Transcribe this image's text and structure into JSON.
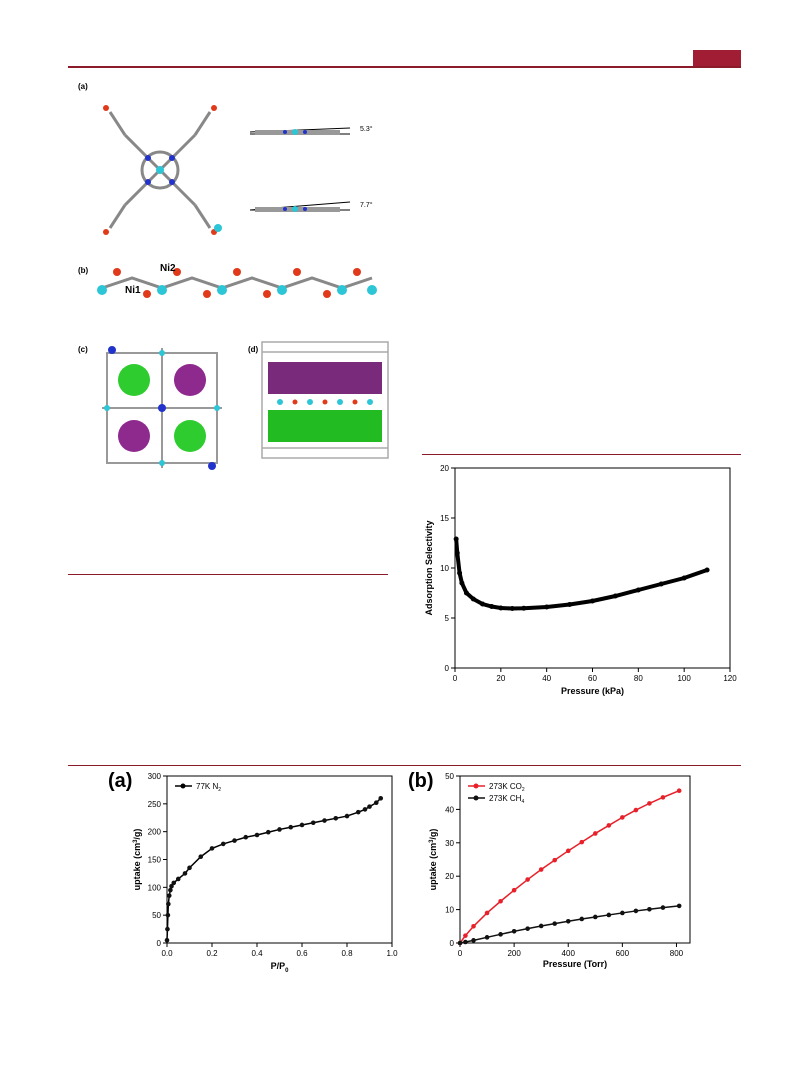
{
  "header": {
    "accent_color": "#a11d33"
  },
  "figure1": {
    "labels": {
      "a": "(a)",
      "b": "(b)",
      "c": "(c)",
      "d": "(d)"
    },
    "angle_top": "5.3°",
    "angle_bottom": "7.7°",
    "atom_labels": {
      "ni1": "Ni1",
      "ni2": "Ni2"
    }
  },
  "selectivity_chart": {
    "chart_data": {
      "type": "scatter",
      "xlabel": "Pressure (kPa)",
      "ylabel": "Adsorption Selectivity",
      "xlim": [
        0,
        120
      ],
      "ylim": [
        0,
        20
      ],
      "xticks": [
        "0",
        "20",
        "40",
        "60",
        "80",
        "100",
        "120"
      ],
      "yticks": [
        "0",
        "5",
        "10",
        "15",
        "20"
      ],
      "x": [
        0.5,
        1,
        2,
        3,
        5,
        8,
        12,
        16,
        20,
        25,
        30,
        40,
        50,
        60,
        70,
        80,
        90,
        100,
        110
      ],
      "y": [
        12.9,
        11.5,
        9.5,
        8.5,
        7.5,
        6.9,
        6.4,
        6.15,
        6.0,
        5.95,
        5.98,
        6.1,
        6.35,
        6.7,
        7.2,
        7.8,
        8.4,
        9.0,
        9.8
      ]
    }
  },
  "n2_chart": {
    "chart_data": {
      "type": "scatter",
      "panel_label": "(a)",
      "xlabel": "P/P",
      "xlabel_sub": "0",
      "ylabel": "uptake (cm",
      "ylabel_sup": "3",
      "ylabel_end": "/g)",
      "xlim": [
        0,
        1.0
      ],
      "ylim": [
        0,
        300
      ],
      "xticks": [
        "0.0",
        "0.2",
        "0.4",
        "0.6",
        "0.8",
        "1.0"
      ],
      "yticks": [
        "0",
        "50",
        "100",
        "150",
        "200",
        "250",
        "300"
      ],
      "series": [
        {
          "name": "77K N",
          "name_sub": "2",
          "x": [
            0.0,
            0.002,
            0.004,
            0.006,
            0.01,
            0.015,
            0.02,
            0.03,
            0.05,
            0.08,
            0.1,
            0.15,
            0.2,
            0.25,
            0.3,
            0.35,
            0.4,
            0.45,
            0.5,
            0.55,
            0.6,
            0.65,
            0.7,
            0.75,
            0.8,
            0.85,
            0.88,
            0.9,
            0.93,
            0.95
          ],
          "y": [
            5,
            25,
            50,
            70,
            85,
            95,
            102,
            108,
            115,
            125,
            135,
            155,
            170,
            178,
            184,
            190,
            194,
            199,
            204,
            208,
            212,
            216,
            220,
            224,
            228,
            235,
            240,
            245,
            252,
            260
          ]
        }
      ]
    }
  },
  "gas_chart": {
    "chart_data": {
      "type": "scatter",
      "panel_label": "(b)",
      "xlabel": "Pressure (Torr)",
      "ylabel": "uptake (cm",
      "ylabel_sup": "3",
      "ylabel_end": "/g)",
      "xlim": [
        0,
        850
      ],
      "ylim": [
        0,
        50
      ],
      "xticks": [
        "0",
        "200",
        "400",
        "600",
        "800"
      ],
      "yticks": [
        "0",
        "10",
        "20",
        "30",
        "40",
        "50"
      ],
      "series": [
        {
          "name": "273K CO",
          "name_sub": "2",
          "color": "#e8202a",
          "x": [
            0,
            20,
            50,
            100,
            150,
            200,
            250,
            300,
            350,
            400,
            450,
            500,
            550,
            600,
            650,
            700,
            750,
            810
          ],
          "y": [
            0,
            2.2,
            5.0,
            9.0,
            12.5,
            15.8,
            19.0,
            22.0,
            24.8,
            27.6,
            30.2,
            32.8,
            35.2,
            37.6,
            39.8,
            41.8,
            43.6,
            45.6
          ]
        },
        {
          "name": "273K CH",
          "name_sub": "4",
          "color": "#111111",
          "x": [
            0,
            20,
            50,
            100,
            150,
            200,
            250,
            300,
            350,
            400,
            450,
            500,
            550,
            600,
            650,
            700,
            750,
            810
          ],
          "y": [
            0,
            0.3,
            0.8,
            1.7,
            2.6,
            3.5,
            4.3,
            5.1,
            5.8,
            6.5,
            7.2,
            7.8,
            8.4,
            9.0,
            9.6,
            10.1,
            10.6,
            11.1
          ]
        }
      ]
    }
  }
}
